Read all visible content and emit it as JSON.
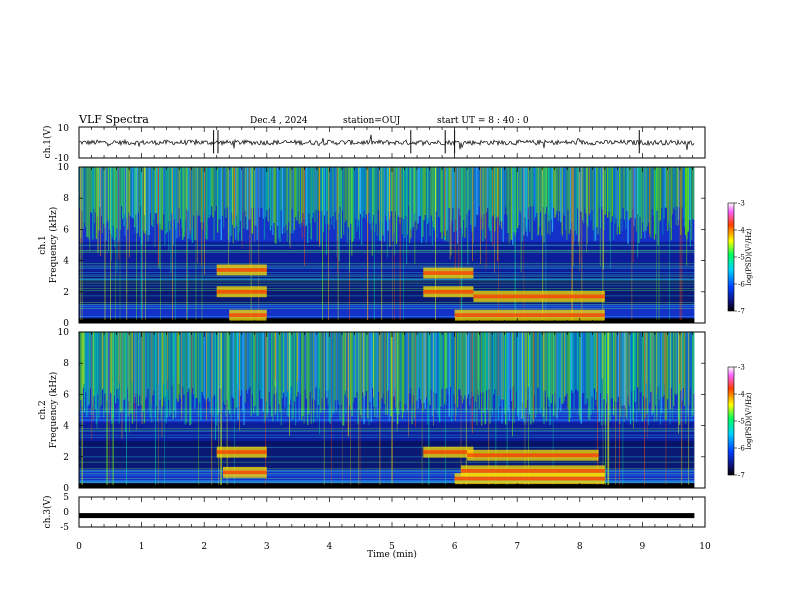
{
  "header": {
    "title": "VLF Spectra",
    "date": "Dec.4 , 2024",
    "station": "station=OUJ",
    "start": "start  UT =  8 : 40 : 0"
  },
  "chart_data": [
    {
      "type": "line",
      "name": "channel-1-waveform",
      "ylabel": "ch.1(V)",
      "xlim": [
        0,
        10
      ],
      "ylim": [
        -10,
        10
      ],
      "yticks": [
        "10",
        "-10"
      ],
      "data_extent_min": 9.83,
      "line_color": "#000000"
    },
    {
      "type": "heatmap",
      "name": "channel-1-spectrogram",
      "ylabel_line1": "ch.1",
      "ylabel_line2": "Frequency (kHz)",
      "xlim": [
        0,
        10
      ],
      "ylim": [
        0,
        10
      ],
      "yticks": [
        "0",
        "2",
        "4",
        "6",
        "8",
        "10"
      ],
      "colorbar": {
        "label": "log(PSD)(V²/Hz)",
        "ticks": [
          "-3",
          "-4",
          "-5",
          "-6",
          "-7"
        ],
        "range": [
          -7,
          -3
        ]
      },
      "enhanced_intervals_min": [
        [
          2.2,
          3.0
        ],
        [
          5.4,
          8.4
        ]
      ],
      "bands_khz": [
        {
          "t": [
            2.2,
            3.0
          ],
          "f": 3.4
        },
        {
          "t": [
            2.2,
            3.0
          ],
          "f": 2.0
        },
        {
          "t": [
            2.4,
            3.0
          ],
          "f": 0.5
        },
        {
          "t": [
            5.5,
            6.3
          ],
          "f": 3.2
        },
        {
          "t": [
            5.5,
            6.3
          ],
          "f": 2.0
        },
        {
          "t": [
            6.3,
            8.4
          ],
          "f": 1.7
        },
        {
          "t": [
            6.0,
            8.4
          ],
          "f": 0.5
        }
      ]
    },
    {
      "type": "heatmap",
      "name": "channel-2-spectrogram",
      "ylabel_line1": "ch.2",
      "ylabel_line2": "Frequency (kHz)",
      "xlim": [
        0,
        10
      ],
      "ylim": [
        0,
        10
      ],
      "yticks": [
        "0",
        "2",
        "4",
        "6",
        "8",
        "10"
      ],
      "colorbar": {
        "label": "log(PSD)(V²/Hz)",
        "ticks": [
          "-3",
          "-4",
          "-5",
          "-6",
          "-7"
        ],
        "range": [
          -7,
          -3
        ]
      },
      "enhanced_intervals_min": [
        [
          2.2,
          3.0
        ],
        [
          5.4,
          8.4
        ]
      ],
      "bands_khz": [
        {
          "t": [
            2.2,
            3.0
          ],
          "f": 2.3
        },
        {
          "t": [
            2.3,
            3.0
          ],
          "f": 1.0
        },
        {
          "t": [
            5.5,
            6.3
          ],
          "f": 2.3
        },
        {
          "t": [
            6.2,
            8.3
          ],
          "f": 2.1
        },
        {
          "t": [
            6.1,
            8.4
          ],
          "f": 1.1
        },
        {
          "t": [
            6.0,
            8.4
          ],
          "f": 0.6
        }
      ]
    },
    {
      "type": "line",
      "name": "channel-3-waveform",
      "ylabel": "ch.3(V)",
      "xlim": [
        0,
        10
      ],
      "ylim": [
        -5,
        5
      ],
      "yticks": [
        "5",
        "0",
        "-5"
      ],
      "value": -1.2,
      "data_extent_min": 9.83,
      "line_color": "#000000"
    }
  ],
  "xaxis": {
    "label": "Time (min)",
    "ticks": [
      "0",
      "1",
      "2",
      "3",
      "4",
      "5",
      "6",
      "7",
      "8",
      "9",
      "10"
    ]
  }
}
